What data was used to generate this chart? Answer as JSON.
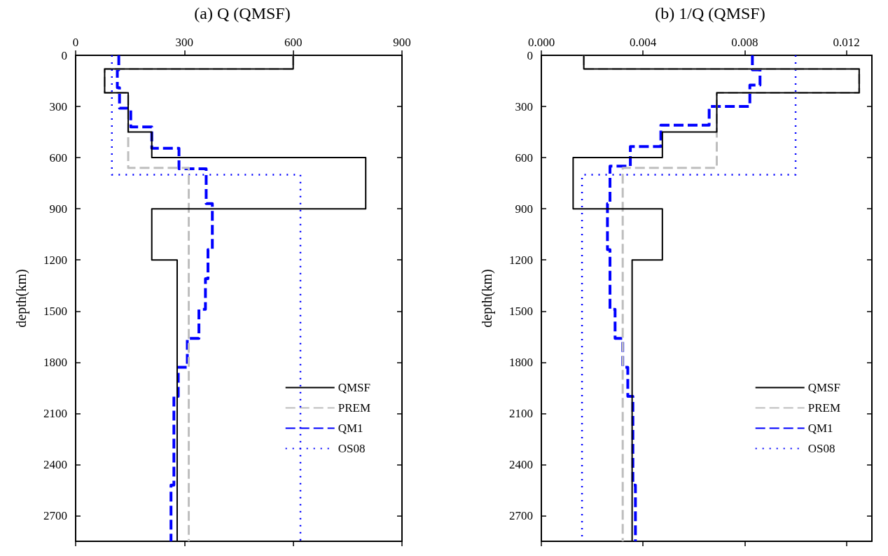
{
  "chart_data": [
    {
      "type": "line",
      "title": "(a) Q (QMSF)",
      "ylabel": "depth(km)",
      "xlim": [
        0,
        900
      ],
      "xticks": [
        0,
        300,
        600,
        900
      ],
      "ylim": [
        2850,
        0
      ],
      "yticks": [
        0,
        300,
        600,
        900,
        1200,
        1500,
        1800,
        2100,
        2400,
        2700
      ],
      "grid": false,
      "legend": "bottom right",
      "marker": "none",
      "series": [
        {
          "name": "QMSF",
          "color": "#000000",
          "line_style": "solid",
          "x": [
            600,
            600,
            80,
            80,
            145,
            145,
            210,
            210,
            800,
            800,
            210,
            210,
            280,
            280
          ],
          "values": [
            0,
            80,
            80,
            220,
            220,
            450,
            450,
            600,
            600,
            900,
            900,
            1200,
            1200,
            2850
          ]
        },
        {
          "name": "PREM",
          "color": "#bebebe",
          "line_style": "dashed",
          "x": [
            600,
            600,
            80,
            80,
            145,
            145,
            312,
            312
          ],
          "values": [
            0,
            80,
            80,
            220,
            220,
            660,
            660,
            2850
          ]
        },
        {
          "name": "QM1",
          "color": "#0000ff",
          "line_style": "dashed",
          "x": [
            119,
            119,
            115,
            115,
            121,
            121,
            152,
            152,
            210,
            210,
            285,
            285,
            360,
            360,
            377,
            377,
            365,
            365,
            358,
            358,
            340,
            340,
            308,
            308,
            283,
            283,
            271,
            271,
            263,
            263
          ],
          "values": [
            0,
            85,
            85,
            190,
            190,
            310,
            310,
            420,
            420,
            545,
            545,
            665,
            665,
            870,
            870,
            1140,
            1140,
            1310,
            1310,
            1490,
            1490,
            1660,
            1660,
            1830,
            1830,
            2000,
            2000,
            2520,
            2520,
            2850
          ]
        },
        {
          "name": "OS08",
          "color": "#0000ff",
          "line_style": "dotted",
          "x": [
            100,
            100,
            620,
            620
          ],
          "values": [
            0,
            700,
            700,
            2850
          ]
        }
      ]
    },
    {
      "type": "line",
      "title": "(b) 1/Q (QMSF)",
      "ylabel": "depth(km)",
      "xlim": [
        0,
        0.013
      ],
      "xticks": [
        {
          "value": 0,
          "label": "0.000"
        },
        {
          "value": 0.004,
          "label": "0.004"
        },
        {
          "value": 0.008,
          "label": "0.008"
        },
        {
          "value": 0.012,
          "label": "0.012"
        }
      ],
      "ylim": [
        2850,
        0
      ],
      "yticks": [
        0,
        300,
        600,
        900,
        1200,
        1500,
        1800,
        2100,
        2400,
        2700
      ],
      "grid": false,
      "legend": "bottom right",
      "marker": "none",
      "series": [
        {
          "name": "QMSF",
          "color": "#000000",
          "line_style": "solid",
          "x": [
            0.00167,
            0.00167,
            0.0125,
            0.0125,
            0.0069,
            0.0069,
            0.00476,
            0.00476,
            0.00125,
            0.00125,
            0.00476,
            0.00476,
            0.00357,
            0.00357
          ],
          "values": [
            0,
            80,
            80,
            220,
            220,
            450,
            450,
            600,
            600,
            900,
            900,
            1200,
            1200,
            2850
          ]
        },
        {
          "name": "PREM",
          "color": "#bebebe",
          "line_style": "dashed",
          "x": [
            0.00167,
            0.00167,
            0.0125,
            0.0125,
            0.0069,
            0.0069,
            0.0032,
            0.0032
          ],
          "values": [
            0,
            80,
            80,
            220,
            220,
            660,
            660,
            2850
          ]
        },
        {
          "name": "QM1",
          "color": "#0000ff",
          "line_style": "dashed",
          "x": [
            0.0083,
            0.0083,
            0.0086,
            0.0086,
            0.0082,
            0.0082,
            0.0066,
            0.0066,
            0.0047,
            0.0047,
            0.0035,
            0.0035,
            0.0027,
            0.0027,
            0.0026,
            0.0026,
            0.0027,
            0.0027,
            0.0027,
            0.0027,
            0.0029,
            0.0029,
            0.0032,
            0.0032,
            0.0034,
            0.0034,
            0.0036,
            0.0036,
            0.0037,
            0.0037
          ],
          "values": [
            0,
            85,
            85,
            175,
            175,
            300,
            300,
            410,
            410,
            535,
            535,
            650,
            650,
            870,
            870,
            1140,
            1140,
            1310,
            1310,
            1490,
            1490,
            1660,
            1660,
            1830,
            1830,
            2000,
            2000,
            2520,
            2520,
            2850
          ]
        },
        {
          "name": "OS08",
          "color": "#0000ff",
          "line_style": "dotted",
          "x": [
            0.01,
            0.01,
            0.0016,
            0.0016
          ],
          "values": [
            0,
            700,
            700,
            2850
          ]
        }
      ]
    }
  ]
}
